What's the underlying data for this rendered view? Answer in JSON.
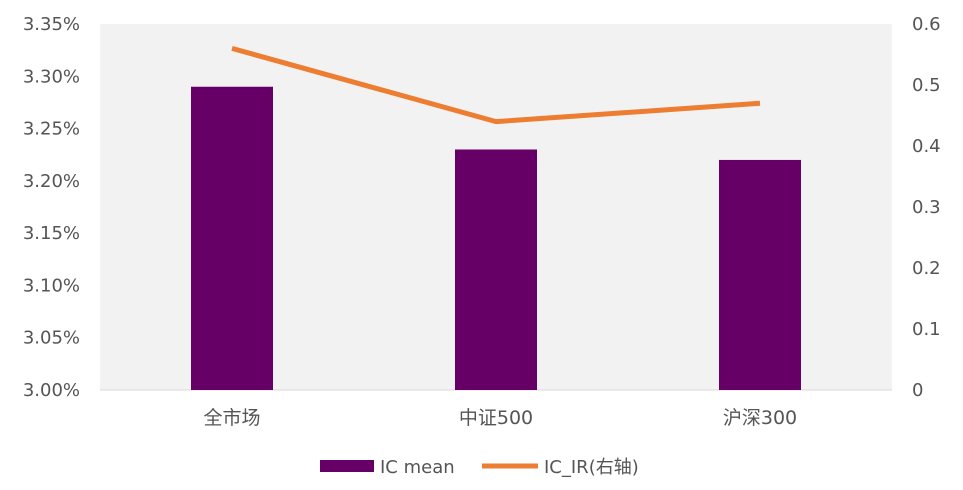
{
  "colors": {
    "plot_background": "#f2f2f2",
    "bar": "#660066",
    "line": "#ed7d31",
    "text": "#555555",
    "axis_line": "#d9d9d9"
  },
  "chart_data": {
    "type": "bar",
    "title": "",
    "xlabel": "",
    "ylabel": "",
    "categories": [
      "全市场",
      "中证500",
      "沪深300"
    ],
    "series": [
      {
        "name": "IC mean",
        "type": "bar",
        "axis": "left",
        "values": [
          3.29,
          3.23,
          3.22
        ],
        "color": "#660066"
      },
      {
        "name": "IC_IR(右轴)",
        "type": "line",
        "axis": "right",
        "values": [
          0.56,
          0.44,
          0.47
        ],
        "color": "#ed7d31"
      }
    ],
    "ylim_left": [
      3.0,
      3.35
    ],
    "yticks_left": [
      3.0,
      3.05,
      3.1,
      3.15,
      3.2,
      3.25,
      3.3,
      3.35
    ],
    "ytick_labels_left": [
      "3.00%",
      "3.05%",
      "3.10%",
      "3.15%",
      "3.20%",
      "3.25%",
      "3.30%",
      "3.35%"
    ],
    "ylim_right": [
      0,
      0.6
    ],
    "yticks_right": [
      0,
      0.1,
      0.2,
      0.3,
      0.4,
      0.5,
      0.6
    ],
    "ytick_labels_right": [
      "0",
      "0.1",
      "0.2",
      "0.3",
      "0.4",
      "0.5",
      "0.6"
    ],
    "grid": false,
    "legend_position": "bottom-center",
    "legend": [
      "IC mean",
      "IC_IR(右轴)"
    ]
  }
}
